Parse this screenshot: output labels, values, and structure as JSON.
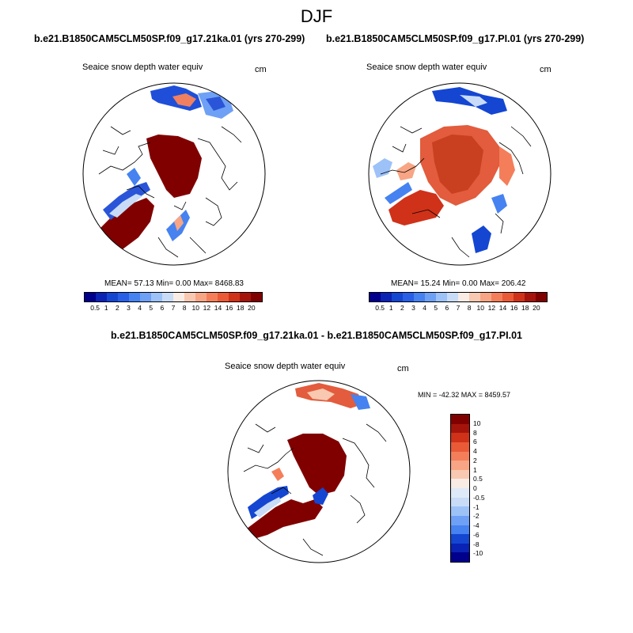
{
  "figure": {
    "season": "DJF",
    "units": "cm",
    "field": "Seaice snow depth water equiv"
  },
  "panels": [
    {
      "id": "left",
      "title": "b.e21.B1850CAM5CLM50SP.f09_g17.21ka.01 (yrs 270-299)",
      "field": "Seaice snow depth water equiv",
      "units": "cm",
      "stats": "MEAN=  57.13  Min=   0.00  Max= 8468.83"
    },
    {
      "id": "right",
      "title": "b.e21.B1850CAM5CLM50SP.f09_g17.PI.01 (yrs 270-299)",
      "field": "Seaice snow depth water equiv",
      "units": "cm",
      "stats": "MEAN=  15.24  Min=   0.00  Max= 206.42"
    },
    {
      "id": "diff",
      "title": "b.e21.B1850CAM5CLM50SP.f09_g17.21ka.01 - b.e21.B1850CAM5CLM50SP.f09_g17.PI.01",
      "field": "Seaice snow depth water equiv",
      "units": "cm",
      "minmax": "MIN = -42.32 MAX = 8459.57"
    }
  ],
  "chart_data": [
    {
      "type": "heatmap",
      "title": "b.e21.B1850CAM5CLM50SP.f09_g17.21ka.01 (yrs 270-299)",
      "projection": "north polar stereographic",
      "variable": "Seaice snow depth water equiv",
      "units": "cm",
      "mean": 57.13,
      "min": 0.0,
      "max": 8468.83,
      "colorbar_levels": [
        "0.5",
        "1",
        "2",
        "3",
        "4",
        "5",
        "6",
        "7",
        "8",
        "10",
        "12",
        "14",
        "16",
        "18",
        "20"
      ],
      "colorbar_colors": [
        "#00008c",
        "#0a23b4",
        "#1446d2",
        "#285fe6",
        "#4682f0",
        "#6ea0f5",
        "#9cc2f8",
        "#c8dcf8",
        "#f8ece4",
        "#f8c8b0",
        "#f7a585",
        "#f47e5a",
        "#ea5a37",
        "#cf3219",
        "#a5140a",
        "#800000"
      ]
    },
    {
      "type": "heatmap",
      "title": "b.e21.B1850CAM5CLM50SP.f09_g17.PI.01 (yrs 270-299)",
      "projection": "north polar stereographic",
      "variable": "Seaice snow depth water equiv",
      "units": "cm",
      "mean": 15.24,
      "min": 0.0,
      "max": 206.42,
      "colorbar_levels": [
        "0.5",
        "1",
        "2",
        "3",
        "4",
        "5",
        "6",
        "7",
        "8",
        "10",
        "12",
        "14",
        "16",
        "18",
        "20"
      ],
      "colorbar_colors": [
        "#00008c",
        "#0a23b4",
        "#1446d2",
        "#285fe6",
        "#4682f0",
        "#6ea0f5",
        "#9cc2f8",
        "#c8dcf8",
        "#f8ece4",
        "#f8c8b0",
        "#f7a585",
        "#f47e5a",
        "#ea5a37",
        "#cf3219",
        "#a5140a",
        "#800000"
      ]
    },
    {
      "type": "heatmap",
      "title": "b.e21.B1850CAM5CLM50SP.f09_g17.21ka.01 - b.e21.B1850CAM5CLM50SP.f09_g17.PI.01",
      "projection": "north polar stereographic",
      "variable": "Seaice snow depth water equiv",
      "units": "cm",
      "min": -42.32,
      "max": 8459.57,
      "colorbar_levels": [
        "10",
        "8",
        "6",
        "4",
        "2",
        "1",
        "0.5",
        "0",
        "-0.5",
        "-1",
        "-2",
        "-4",
        "-6",
        "-8",
        "-10"
      ],
      "colorbar_colors": [
        "#800000",
        "#a5140a",
        "#cf3219",
        "#ea5a37",
        "#f47e5a",
        "#f7a585",
        "#f8c8b0",
        "#f8ece4",
        "#dfeaf8",
        "#c8dcf8",
        "#9cc2f8",
        "#6ea0f5",
        "#4682f0",
        "#1446d2",
        "#0a23b4",
        "#00008c"
      ]
    }
  ]
}
